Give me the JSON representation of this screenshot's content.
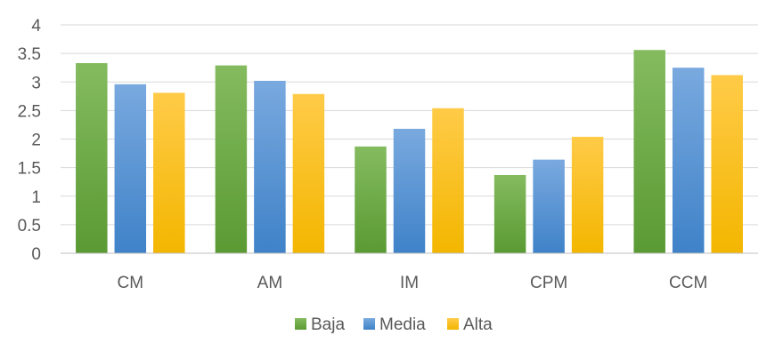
{
  "chart_data": {
    "type": "bar",
    "categories": [
      "CM",
      "AM",
      "IM",
      "CPM",
      "CCM"
    ],
    "series": [
      {
        "name": "Baja",
        "values": [
          3.33,
          3.29,
          1.87,
          1.37,
          3.56
        ]
      },
      {
        "name": "Media",
        "values": [
          2.96,
          3.02,
          2.18,
          1.64,
          3.25
        ]
      },
      {
        "name": "Alta",
        "values": [
          2.81,
          2.79,
          2.54,
          2.04,
          3.12
        ]
      }
    ],
    "yticks": [
      "0",
      "0.5",
      "1",
      "1.5",
      "2",
      "2.5",
      "3",
      "3.5",
      "4"
    ],
    "ylim": [
      0,
      4
    ],
    "grid": true,
    "legend_position": "bottom",
    "title": "",
    "xlabel": "",
    "ylabel": "",
    "colors": {
      "Baja": {
        "top": "#84bb5f",
        "bottom": "#5a9a33"
      },
      "Media": {
        "top": "#79a9df",
        "bottom": "#3f82c8"
      },
      "Alta": {
        "top": "#ffcb48",
        "bottom": "#f3b600"
      }
    }
  }
}
